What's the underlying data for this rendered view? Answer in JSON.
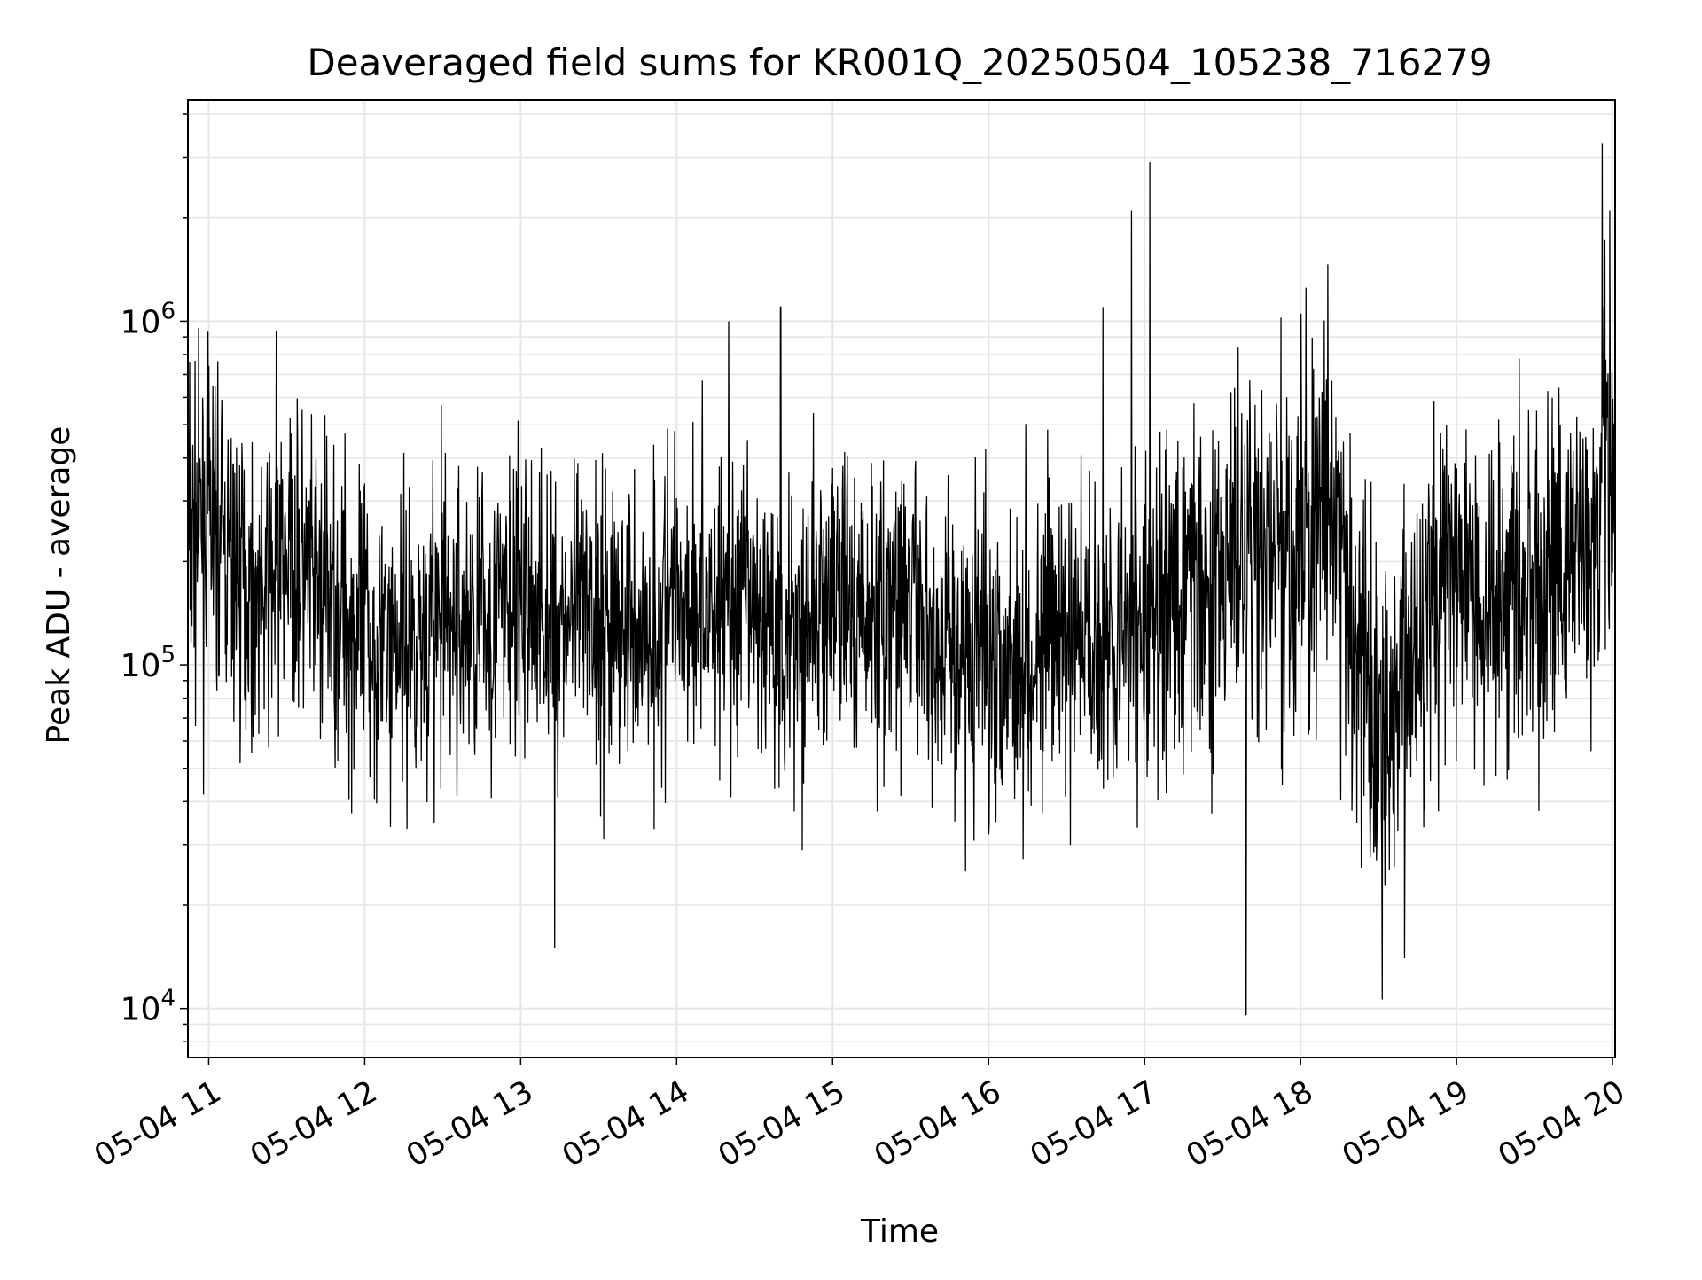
{
  "chart_data": {
    "type": "line",
    "title": "Deaveraged field sums for KR001Q_20250504_105238_716279",
    "xlabel": "Time",
    "ylabel": "Peak ADU - average",
    "x_ticks": [
      "05-04 11",
      "05-04 12",
      "05-04 13",
      "05-04 14",
      "05-04 15",
      "05-04 16",
      "05-04 17",
      "05-04 18",
      "05-04 19",
      "05-04 20"
    ],
    "xlim": [
      "2025-05-04 10:52",
      "2025-05-04 20:01"
    ],
    "y_scale": "log",
    "y_ticks": [
      {
        "value": 10000,
        "base": "10",
        "exp": "4"
      },
      {
        "value": 100000,
        "base": "10",
        "exp": "5"
      },
      {
        "value": 1000000,
        "base": "10",
        "exp": "6"
      }
    ],
    "ylim": [
      7200,
      4400000
    ],
    "grid": true,
    "line_color": "#000000",
    "series": [
      {
        "x": [
          "2025-05-04 10:52",
          "2025-05-04 11:00",
          "2025-05-04 11:10",
          "2025-05-04 11:20",
          "2025-05-04 11:30",
          "2025-05-04 11:40",
          "2025-05-04 11:50",
          "2025-05-04 12:00",
          "2025-05-04 12:10",
          "2025-05-04 12:20",
          "2025-05-04 12:30",
          "2025-05-04 12:40",
          "2025-05-04 12:50",
          "2025-05-04 13:00",
          "2025-05-04 13:10",
          "2025-05-04 13:20",
          "2025-05-04 13:30",
          "2025-05-04 13:40",
          "2025-05-04 13:50",
          "2025-05-04 14:00",
          "2025-05-04 14:10",
          "2025-05-04 14:20",
          "2025-05-04 14:30",
          "2025-05-04 14:40",
          "2025-05-04 14:50",
          "2025-05-04 15:00",
          "2025-05-04 15:10",
          "2025-05-04 15:20",
          "2025-05-04 15:30",
          "2025-05-04 15:40",
          "2025-05-04 15:50",
          "2025-05-04 16:00",
          "2025-05-04 16:10",
          "2025-05-04 16:20",
          "2025-05-04 16:30",
          "2025-05-04 16:40",
          "2025-05-04 16:50",
          "2025-05-04 17:00",
          "2025-05-04 17:10",
          "2025-05-04 17:20",
          "2025-05-04 17:30",
          "2025-05-04 17:40",
          "2025-05-04 17:50",
          "2025-05-04 18:00",
          "2025-05-04 18:10",
          "2025-05-04 18:20",
          "2025-05-04 18:30",
          "2025-05-04 18:40",
          "2025-05-04 18:50",
          "2025-05-04 19:00",
          "2025-05-04 19:10",
          "2025-05-04 19:20",
          "2025-05-04 19:30",
          "2025-05-04 19:40",
          "2025-05-04 19:50",
          "2025-05-04 20:00"
        ],
        "y": [
          230000,
          270000,
          190000,
          150000,
          210000,
          165000,
          150000,
          120000,
          118000,
          122000,
          135000,
          128000,
          145000,
          150000,
          140000,
          135000,
          140000,
          130000,
          125000,
          165000,
          155000,
          150000,
          140000,
          125000,
          140000,
          150000,
          140000,
          145000,
          150000,
          115000,
          110000,
          112000,
          108000,
          118000,
          115000,
          122000,
          125000,
          125000,
          155000,
          175000,
          185000,
          210000,
          200000,
          215000,
          300000,
          130000,
          55000,
          90000,
          200000,
          175000,
          165000,
          175000,
          160000,
          175000,
          230000,
          380000
        ],
        "spikes": [
          {
            "t": "2025-05-04 11:26",
            "y": 940000
          },
          {
            "t": "2025-05-04 13:13",
            "y": 15000
          },
          {
            "t": "2025-05-04 14:20",
            "y": 1000000
          },
          {
            "t": "2025-05-04 14:40",
            "y": 1100000
          },
          {
            "t": "2025-05-04 16:44",
            "y": 1100000
          },
          {
            "t": "2025-05-04 16:55",
            "y": 2100000
          },
          {
            "t": "2025-05-04 17:02",
            "y": 2900000
          },
          {
            "t": "2025-05-04 17:39",
            "y": 9600
          },
          {
            "t": "2025-05-04 18:40",
            "y": 14000
          },
          {
            "t": "2025-05-04 19:56",
            "y": 3300000
          },
          {
            "t": "2025-05-04 19:59",
            "y": 2100000
          }
        ]
      }
    ]
  }
}
